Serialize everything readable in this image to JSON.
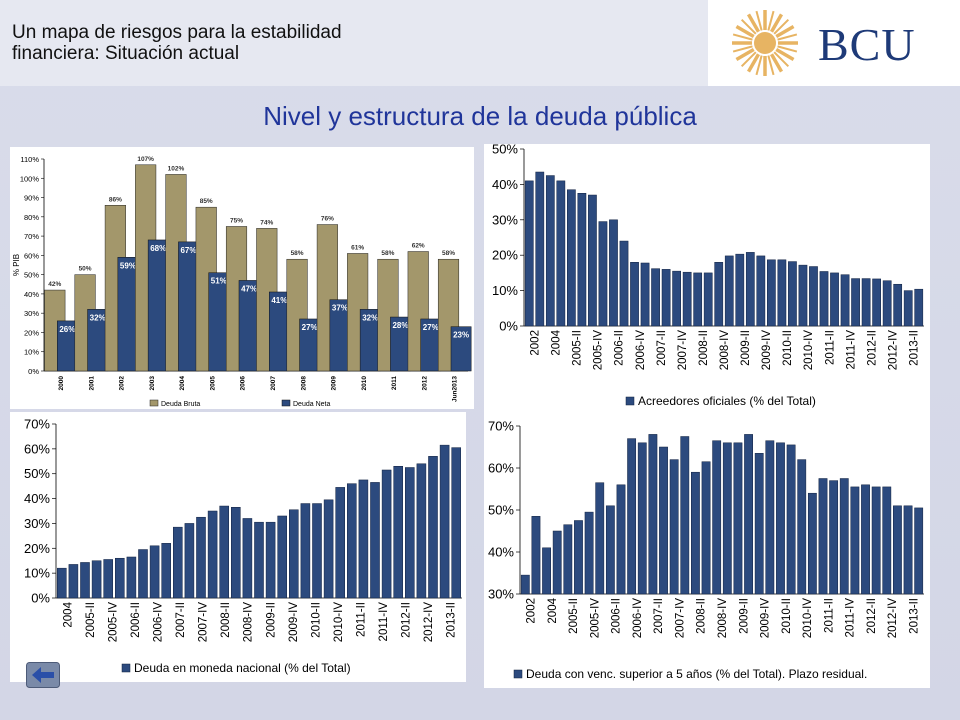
{
  "header": {
    "title": "Un mapa de riesgos para la estabilidad financiera: Situación actual",
    "logo_text": "BCU"
  },
  "main_title": "Nivel y estructura de la deuda pública",
  "colors": {
    "bruta": "#a3976b",
    "neta": "#2c4a7e",
    "title": "#20359a",
    "bar": "#2c4a7e"
  },
  "icons": {
    "logo": "sun-emblem-icon",
    "back": "back-arrow-icon"
  },
  "chart_data": [
    {
      "type": "bar",
      "ylabel": "% PIB",
      "ylim": [
        0,
        110
      ],
      "ytick_suffix": "%",
      "ytick_step": 10,
      "categories": [
        "2000",
        "2001",
        "2002",
        "2003",
        "2004",
        "2005",
        "2006",
        "2007",
        "2008",
        "2009",
        "2010",
        "2011",
        "2012",
        "Jun2013"
      ],
      "series": [
        {
          "name": "Deuda Bruta",
          "values": [
            42,
            50,
            86,
            107,
            102,
            85,
            75,
            74,
            58,
            76,
            61,
            58,
            62,
            58
          ],
          "labels": [
            "42%",
            "50%",
            "86%",
            "107%",
            "102%",
            "85%",
            "75%",
            "74%",
            "58%",
            "76%",
            "61%",
            "58%",
            "62%",
            "58%"
          ]
        },
        {
          "name": "Deuda Neta",
          "values": [
            26,
            32,
            59,
            68,
            67,
            51,
            47,
            41,
            27,
            37,
            32,
            28,
            27,
            23
          ],
          "labels": [
            "26%",
            "32%",
            "59%",
            "68%",
            "67%",
            "51%",
            "47%",
            "41%",
            "27%",
            "37%",
            "32%",
            "28%",
            "27%",
            "23%"
          ]
        }
      ],
      "legend_position": "bottom"
    },
    {
      "type": "bar",
      "ylim": [
        0,
        50
      ],
      "ytick_suffix": "%",
      "ytick_step": 10,
      "tick_labels": [
        "2002",
        "2004",
        "2005-II",
        "2005-IV",
        "2006-II",
        "2006-IV",
        "2007-II",
        "2007-IV",
        "2008-II",
        "2008-IV",
        "2009-II",
        "2009-IV",
        "2010-II",
        "2010-IV",
        "2011-II",
        "2011-IV",
        "2012-II",
        "2012-IV",
        "2013-II"
      ],
      "values": [
        41,
        43.5,
        42.5,
        41,
        38.5,
        37.5,
        37,
        29.5,
        30,
        24,
        18,
        17.8,
        16.2,
        16,
        15.5,
        15.2,
        15,
        15,
        18,
        19.8,
        20.3,
        20.8,
        19.8,
        18.7,
        18.7,
        18.2,
        17.2,
        16.8,
        15.4,
        15,
        14.5,
        13.4,
        13.4,
        13.3,
        12.8,
        11.8,
        10,
        10.4
      ],
      "legend": "Acreedores oficiales (% del Total)"
    },
    {
      "type": "bar",
      "ylim": [
        0,
        70
      ],
      "ytick_suffix": "%",
      "ytick_step": 10,
      "tick_labels": [
        "2004",
        "2005-II",
        "2005-IV",
        "2006-II",
        "2006-IV",
        "2007-II",
        "2007-IV",
        "2008-II",
        "2008-IV",
        "2009-II",
        "2009-IV",
        "2010-II",
        "2010-IV",
        "2011-II",
        "2011-IV",
        "2012-II",
        "2012-IV",
        "2013-II"
      ],
      "values": [
        12,
        13.5,
        14.3,
        15,
        15.5,
        16,
        16.5,
        19.5,
        21,
        22,
        28.5,
        30,
        32.5,
        35,
        37,
        36.5,
        32,
        30.5,
        30.5,
        33,
        35.5,
        38,
        38,
        39.5,
        44.5,
        46,
        47.5,
        46.5,
        51.5,
        53,
        52.5,
        54,
        57,
        61.5,
        60.5
      ],
      "legend": "Deuda en moneda nacional (% del Total)"
    },
    {
      "type": "bar",
      "ylim": [
        30,
        70
      ],
      "ytick_suffix": "%",
      "ytick_step": 10,
      "tick_labels": [
        "2002",
        "2004",
        "2005-II",
        "2005-IV",
        "2006-II",
        "2006-IV",
        "2007-II",
        "2007-IV",
        "2008-II",
        "2008-IV",
        "2009-II",
        "2009-IV",
        "2010-II",
        "2010-IV",
        "2011-II",
        "2011-IV",
        "2012-II",
        "2012-IV",
        "2013-II"
      ],
      "values": [
        34.5,
        48.5,
        41,
        45,
        46.5,
        47.5,
        49.5,
        56.5,
        51,
        56,
        67,
        66,
        68,
        65,
        62,
        67.5,
        59,
        61.5,
        66.5,
        66,
        66,
        68,
        63.5,
        66.5,
        66,
        65.5,
        62,
        54,
        57.5,
        57,
        57.5,
        55.5,
        56,
        55.5,
        55.5,
        51,
        51,
        50.5
      ],
      "legend": "Deuda con venc. superior a 5 años (% del Total). Plazo residual."
    }
  ]
}
